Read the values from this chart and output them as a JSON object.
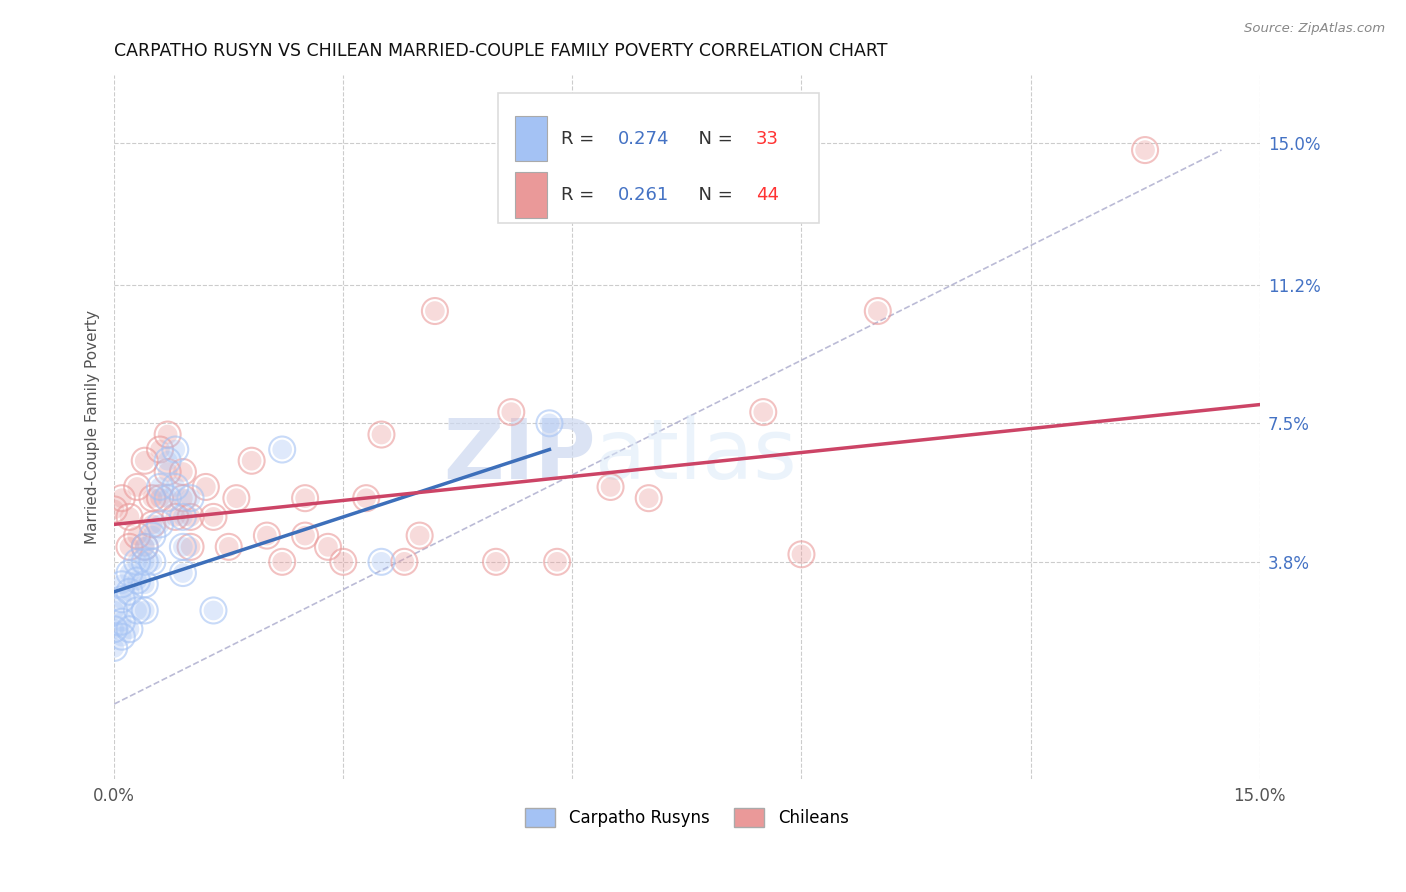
{
  "title": "CARPATHO RUSYN VS CHILEAN MARRIED-COUPLE FAMILY POVERTY CORRELATION CHART",
  "source": "Source: ZipAtlas.com",
  "ylabel": "Married-Couple Family Poverty",
  "xlim": [
    0.0,
    0.15
  ],
  "ylim": [
    -0.02,
    0.168
  ],
  "ytick_positions": [
    0.038,
    0.075,
    0.112,
    0.15
  ],
  "ytick_labels": [
    "3.8%",
    "7.5%",
    "11.2%",
    "15.0%"
  ],
  "blue_color": "#a4c2f4",
  "pink_color": "#ea9999",
  "blue_line_color": "#3d6fba",
  "pink_line_color": "#cc4466",
  "R_blue": 0.274,
  "N_blue": 33,
  "R_pink": 0.261,
  "N_pink": 44,
  "blue_scatter_x": [
    0.0,
    0.0,
    0.0,
    0.001,
    0.001,
    0.001,
    0.001,
    0.002,
    0.002,
    0.002,
    0.003,
    0.003,
    0.003,
    0.004,
    0.004,
    0.004,
    0.004,
    0.005,
    0.005,
    0.006,
    0.006,
    0.007,
    0.007,
    0.008,
    0.008,
    0.009,
    0.009,
    0.009,
    0.01,
    0.013,
    0.022,
    0.035,
    0.057
  ],
  "blue_scatter_y": [
    0.025,
    0.02,
    0.015,
    0.032,
    0.028,
    0.022,
    0.018,
    0.035,
    0.03,
    0.02,
    0.038,
    0.033,
    0.025,
    0.042,
    0.038,
    0.032,
    0.025,
    0.045,
    0.038,
    0.058,
    0.048,
    0.065,
    0.055,
    0.068,
    0.058,
    0.05,
    0.042,
    0.035,
    0.055,
    0.025,
    0.068,
    0.038,
    0.075
  ],
  "pink_scatter_x": [
    0.0,
    0.001,
    0.002,
    0.002,
    0.003,
    0.003,
    0.004,
    0.004,
    0.005,
    0.005,
    0.006,
    0.006,
    0.007,
    0.007,
    0.008,
    0.009,
    0.009,
    0.01,
    0.01,
    0.012,
    0.013,
    0.015,
    0.016,
    0.018,
    0.02,
    0.022,
    0.025,
    0.025,
    0.028,
    0.03,
    0.033,
    0.035,
    0.038,
    0.04,
    0.042,
    0.05,
    0.052,
    0.058,
    0.065,
    0.07,
    0.085,
    0.09,
    0.1,
    0.135
  ],
  "pink_scatter_y": [
    0.052,
    0.055,
    0.05,
    0.042,
    0.045,
    0.058,
    0.042,
    0.065,
    0.048,
    0.055,
    0.055,
    0.068,
    0.062,
    0.072,
    0.05,
    0.055,
    0.062,
    0.05,
    0.042,
    0.058,
    0.05,
    0.042,
    0.055,
    0.065,
    0.045,
    0.038,
    0.055,
    0.045,
    0.042,
    0.038,
    0.055,
    0.072,
    0.038,
    0.045,
    0.105,
    0.038,
    0.078,
    0.038,
    0.058,
    0.055,
    0.078,
    0.04,
    0.105,
    0.148
  ],
  "background_color": "#ffffff",
  "grid_color": "#cccccc",
  "blue_line_x_start": 0.0,
  "blue_line_x_end": 0.057,
  "blue_line_y_start": 0.03,
  "blue_line_y_end": 0.068,
  "pink_line_x_start": 0.0,
  "pink_line_x_end": 0.15,
  "pink_line_y_start": 0.048,
  "pink_line_y_end": 0.08
}
